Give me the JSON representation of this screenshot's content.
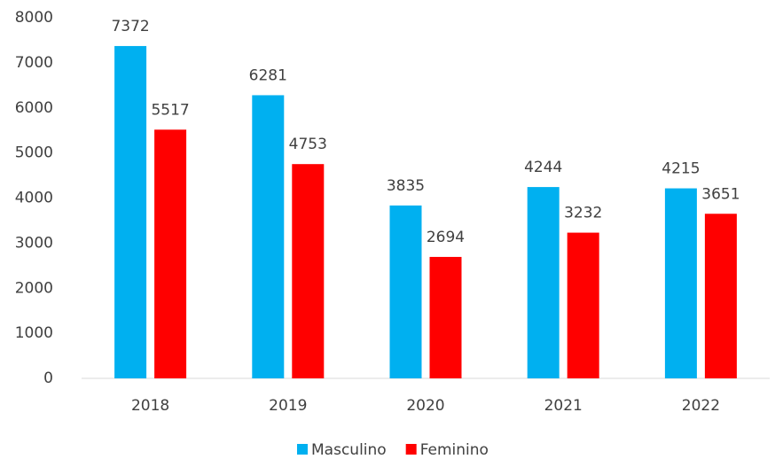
{
  "chart_data": {
    "type": "bar",
    "categories": [
      "2018",
      "2019",
      "2020",
      "2021",
      "2022"
    ],
    "series": [
      {
        "name": "Masculino",
        "color": "#00b0f0",
        "values": [
          7372,
          6281,
          3835,
          4244,
          4215
        ]
      },
      {
        "name": "Feminino",
        "color": "#ff0000",
        "values": [
          5517,
          4753,
          2694,
          3232,
          3651
        ]
      }
    ],
    "ylim": [
      0,
      8000
    ],
    "yticks": [
      0,
      1000,
      2000,
      3000,
      4000,
      5000,
      6000,
      7000,
      8000
    ],
    "grid": false,
    "legend": "bottom"
  }
}
